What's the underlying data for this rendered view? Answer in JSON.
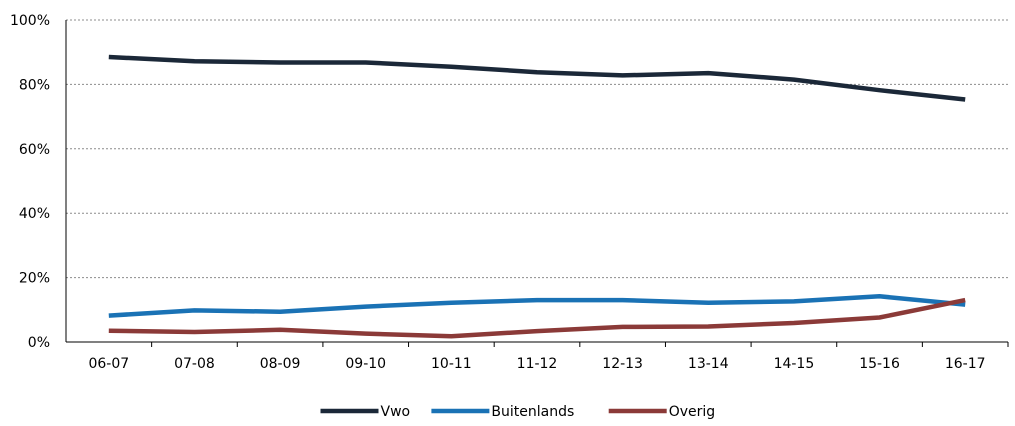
{
  "chart_data": {
    "type": "line",
    "title": "",
    "xlabel": "",
    "ylabel": "",
    "categories": [
      "06-07",
      "07-08",
      "08-09",
      "09-10",
      "10-11",
      "11-12",
      "12-13",
      "13-14",
      "14-15",
      "15-16",
      "16-17"
    ],
    "ylim": [
      0,
      100
    ],
    "yticks": [
      0,
      20,
      40,
      60,
      80,
      100
    ],
    "ytick_labels": [
      "0%",
      "20%",
      "40%",
      "60%",
      "80%",
      "100%"
    ],
    "grid": "horizontal dashed",
    "legend_position": "bottom",
    "series": [
      {
        "name": "Vwo",
        "color": "#1b2838",
        "values": [
          88.5,
          87.2,
          86.8,
          86.8,
          85.5,
          83.8,
          82.8,
          83.5,
          81.5,
          78.2,
          75.3
        ]
      },
      {
        "name": "Buitenlands",
        "color": "#1a72b5",
        "values": [
          8.2,
          9.8,
          9.4,
          11.0,
          12.2,
          13.0,
          13.0,
          12.2,
          12.6,
          14.2,
          11.6
        ]
      },
      {
        "name": "Overig",
        "color": "#8b3a38",
        "values": [
          3.5,
          3.1,
          3.8,
          2.6,
          1.8,
          3.4,
          4.7,
          4.8,
          5.9,
          7.6,
          13.0
        ]
      }
    ]
  }
}
